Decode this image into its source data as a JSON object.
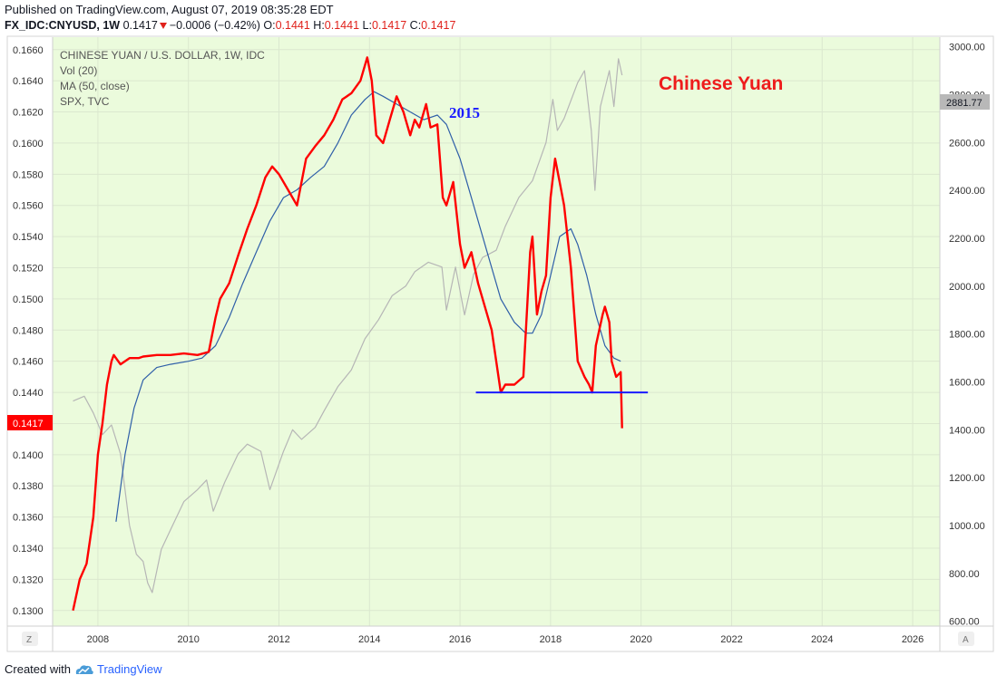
{
  "header": {
    "published": "Published on TradingView.com, August 07, 2019 08:35:28 EDT",
    "symbol": "FX_IDC:CNYUSD, 1W",
    "last": "0.1417",
    "change": "−0.0006 (−0.42%)",
    "o_label": "O:",
    "o_val": "0.1441",
    "h_label": "H:",
    "h_val": "0.1441",
    "l_label": "L:",
    "l_val": "0.1417",
    "c_label": "C:",
    "c_val": "0.1417"
  },
  "legend": {
    "title": "CHINESE YUAN / U.S. DOLLAR, 1W, IDC",
    "vol": "Vol (20)",
    "ma": "MA (50, close)",
    "spx": "SPX, TVC"
  },
  "annotations": {
    "year_label": "2015",
    "big_label": "Chinese Yuan"
  },
  "badges": {
    "left_price": "0.1417",
    "right_price": "2881.77",
    "z_button": "Z",
    "a_button": "A"
  },
  "footer": {
    "created_with": "Created with",
    "brand": "TradingView"
  },
  "colors": {
    "price": "#ff0000",
    "ma": "#2f5fa8",
    "spx": "#b6b6b6",
    "support": "#1a1aff",
    "background": "#ebfbdc"
  },
  "chart_data": {
    "type": "line",
    "x_axis": {
      "ticks": [
        "2008",
        "2010",
        "2012",
        "2014",
        "2016",
        "2018",
        "2020",
        "2022",
        "2024",
        "2026"
      ],
      "range": [
        2007.0,
        2026.6
      ]
    },
    "y_left": {
      "ticks": [
        "0.1660",
        "0.1640",
        "0.1620",
        "0.1600",
        "0.1580",
        "0.1560",
        "0.1540",
        "0.1520",
        "0.1500",
        "0.1480",
        "0.1460",
        "0.1440",
        "0.1420",
        "0.1400",
        "0.1380",
        "0.1360",
        "0.1340",
        "0.1320",
        "0.1300"
      ],
      "range": [
        0.129,
        0.1668
      ]
    },
    "y_right": {
      "ticks": [
        "3000.00",
        "2800.00",
        "2600.00",
        "2400.00",
        "2200.00",
        "2000.00",
        "1800.00",
        "1600.00",
        "1400.00",
        "1200.00",
        "1000.00",
        "800.00",
        "600.00"
      ],
      "range": [
        580,
        3040
      ]
    },
    "series": [
      {
        "name": "CHINESE YUAN / U.S. DOLLAR, 1W, IDC",
        "axis": "left",
        "x": [
          2007.45,
          2007.6,
          2007.75,
          2007.9,
          2008.0,
          2008.1,
          2008.2,
          2008.3,
          2008.35,
          2008.5,
          2008.7,
          2008.9,
          2009.0,
          2009.3,
          2009.6,
          2009.9,
          2010.2,
          2010.45,
          2010.6,
          2010.7,
          2010.9,
          2011.1,
          2011.3,
          2011.5,
          2011.7,
          2011.85,
          2012.0,
          2012.2,
          2012.4,
          2012.5,
          2012.6,
          2012.8,
          2013.0,
          2013.2,
          2013.4,
          2013.6,
          2013.8,
          2013.95,
          2014.05,
          2014.15,
          2014.3,
          2014.45,
          2014.6,
          2014.75,
          2014.9,
          2015.0,
          2015.1,
          2015.25,
          2015.35,
          2015.5,
          2015.62,
          2015.7,
          2015.85,
          2016.0,
          2016.1,
          2016.25,
          2016.4,
          2016.5,
          2016.7,
          2016.9,
          2017.0,
          2017.2,
          2017.4,
          2017.55,
          2017.6,
          2017.7,
          2017.8,
          2017.9,
          2018.0,
          2018.1,
          2018.2,
          2018.3,
          2018.45,
          2018.6,
          2018.75,
          2018.85,
          2018.92,
          2019.0,
          2019.15,
          2019.2,
          2019.3,
          2019.35,
          2019.45,
          2019.55,
          2019.58
        ],
        "values": [
          0.13,
          0.132,
          0.133,
          0.136,
          0.14,
          0.142,
          0.1445,
          0.146,
          0.1464,
          0.1458,
          0.1462,
          0.1462,
          0.1463,
          0.1464,
          0.1464,
          0.1465,
          0.1464,
          0.1466,
          0.1488,
          0.15,
          0.151,
          0.1528,
          0.1545,
          0.156,
          0.1578,
          0.1585,
          0.158,
          0.157,
          0.156,
          0.1575,
          0.159,
          0.1598,
          0.1605,
          0.1615,
          0.1628,
          0.1632,
          0.164,
          0.1655,
          0.164,
          0.1605,
          0.16,
          0.1615,
          0.163,
          0.162,
          0.1605,
          0.1615,
          0.161,
          0.1625,
          0.161,
          0.1612,
          0.1565,
          0.156,
          0.1575,
          0.1535,
          0.152,
          0.153,
          0.151,
          0.15,
          0.148,
          0.144,
          0.1445,
          0.1445,
          0.145,
          0.153,
          0.154,
          0.149,
          0.1505,
          0.1515,
          0.1565,
          0.159,
          0.1575,
          0.156,
          0.152,
          0.146,
          0.145,
          0.1445,
          0.144,
          0.147,
          0.149,
          0.1495,
          0.1485,
          0.146,
          0.145,
          0.1453,
          0.1417
        ]
      },
      {
        "name": "MA (50, close)",
        "axis": "left",
        "x": [
          2008.4,
          2008.6,
          2008.8,
          2009.0,
          2009.3,
          2009.6,
          2010.0,
          2010.3,
          2010.6,
          2010.9,
          2011.2,
          2011.5,
          2011.8,
          2012.1,
          2012.4,
          2012.7,
          2013.0,
          2013.3,
          2013.6,
          2013.9,
          2014.1,
          2014.3,
          2014.6,
          2014.9,
          2015.2,
          2015.5,
          2015.7,
          2016.0,
          2016.3,
          2016.6,
          2016.9,
          2017.2,
          2017.45,
          2017.6,
          2017.8,
          2018.0,
          2018.2,
          2018.45,
          2018.6,
          2018.8,
          2019.0,
          2019.2,
          2019.4,
          2019.55
        ],
        "values": [
          0.1357,
          0.14,
          0.143,
          0.1448,
          0.1456,
          0.1458,
          0.146,
          0.1462,
          0.147,
          0.1488,
          0.151,
          0.153,
          0.155,
          0.1565,
          0.157,
          0.1578,
          0.1585,
          0.16,
          0.1618,
          0.1628,
          0.1633,
          0.163,
          0.1625,
          0.162,
          0.1615,
          0.1618,
          0.1612,
          0.159,
          0.156,
          0.153,
          0.15,
          0.1485,
          0.1478,
          0.1478,
          0.149,
          0.1515,
          0.154,
          0.1545,
          0.1535,
          0.1515,
          0.149,
          0.147,
          0.1462,
          0.146
        ]
      },
      {
        "name": "SPX, TVC",
        "axis": "right",
        "x": [
          2007.45,
          2007.7,
          2007.9,
          2008.1,
          2008.3,
          2008.5,
          2008.7,
          2008.85,
          2009.0,
          2009.1,
          2009.2,
          2009.4,
          2009.6,
          2009.9,
          2010.2,
          2010.4,
          2010.55,
          2010.8,
          2011.1,
          2011.3,
          2011.6,
          2011.8,
          2012.1,
          2012.3,
          2012.5,
          2012.8,
          2013.0,
          2013.3,
          2013.6,
          2013.9,
          2014.2,
          2014.5,
          2014.8,
          2015.0,
          2015.3,
          2015.6,
          2015.7,
          2015.9,
          2016.1,
          2016.3,
          2016.5,
          2016.8,
          2017.0,
          2017.3,
          2017.6,
          2017.9,
          2018.05,
          2018.15,
          2018.3,
          2018.6,
          2018.75,
          2018.9,
          2018.98,
          2019.1,
          2019.3,
          2019.4,
          2019.5,
          2019.58
        ],
        "values": [
          1520,
          1540,
          1470,
          1380,
          1420,
          1300,
          1000,
          880,
          850,
          760,
          720,
          900,
          980,
          1100,
          1150,
          1190,
          1060,
          1180,
          1300,
          1340,
          1310,
          1150,
          1310,
          1400,
          1360,
          1410,
          1480,
          1580,
          1650,
          1780,
          1860,
          1960,
          2000,
          2060,
          2100,
          2080,
          1900,
          2080,
          1880,
          2050,
          2120,
          2150,
          2250,
          2370,
          2440,
          2600,
          2780,
          2650,
          2700,
          2850,
          2900,
          2650,
          2400,
          2750,
          2900,
          2750,
          2950,
          2881
        ]
      }
    ],
    "support_line": {
      "x": [
        2016.35,
        2020.15
      ],
      "value": 0.144
    }
  }
}
